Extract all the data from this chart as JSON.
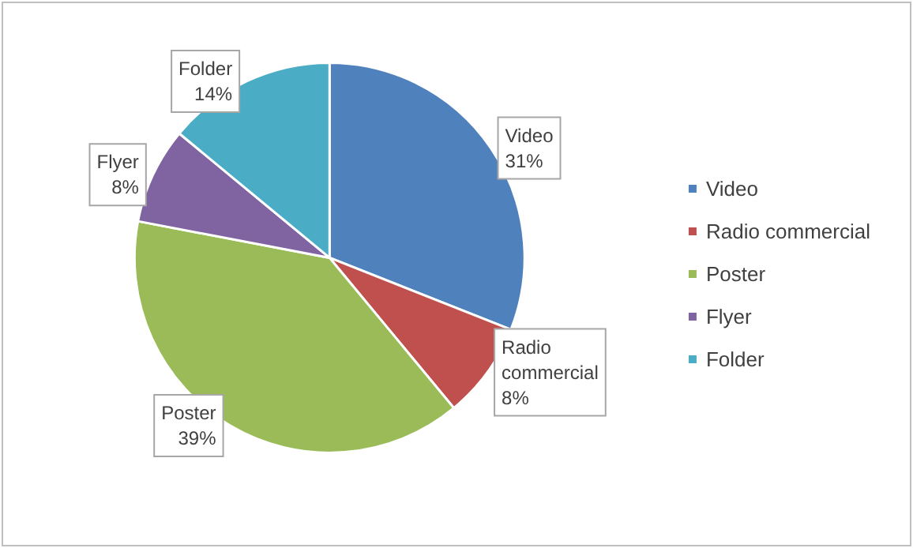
{
  "chart_data": {
    "type": "pie",
    "categories": [
      "Video",
      "Radio commercial",
      "Poster",
      "Flyer",
      "Folder"
    ],
    "values": [
      31,
      8,
      39,
      8,
      14
    ],
    "value_labels": [
      "31%",
      "8%",
      "39%",
      "8%",
      "14%"
    ],
    "colors": [
      "#4f81bd",
      "#c0504d",
      "#9bbb59",
      "#8064a2",
      "#4bacc6"
    ],
    "legend": "right"
  }
}
